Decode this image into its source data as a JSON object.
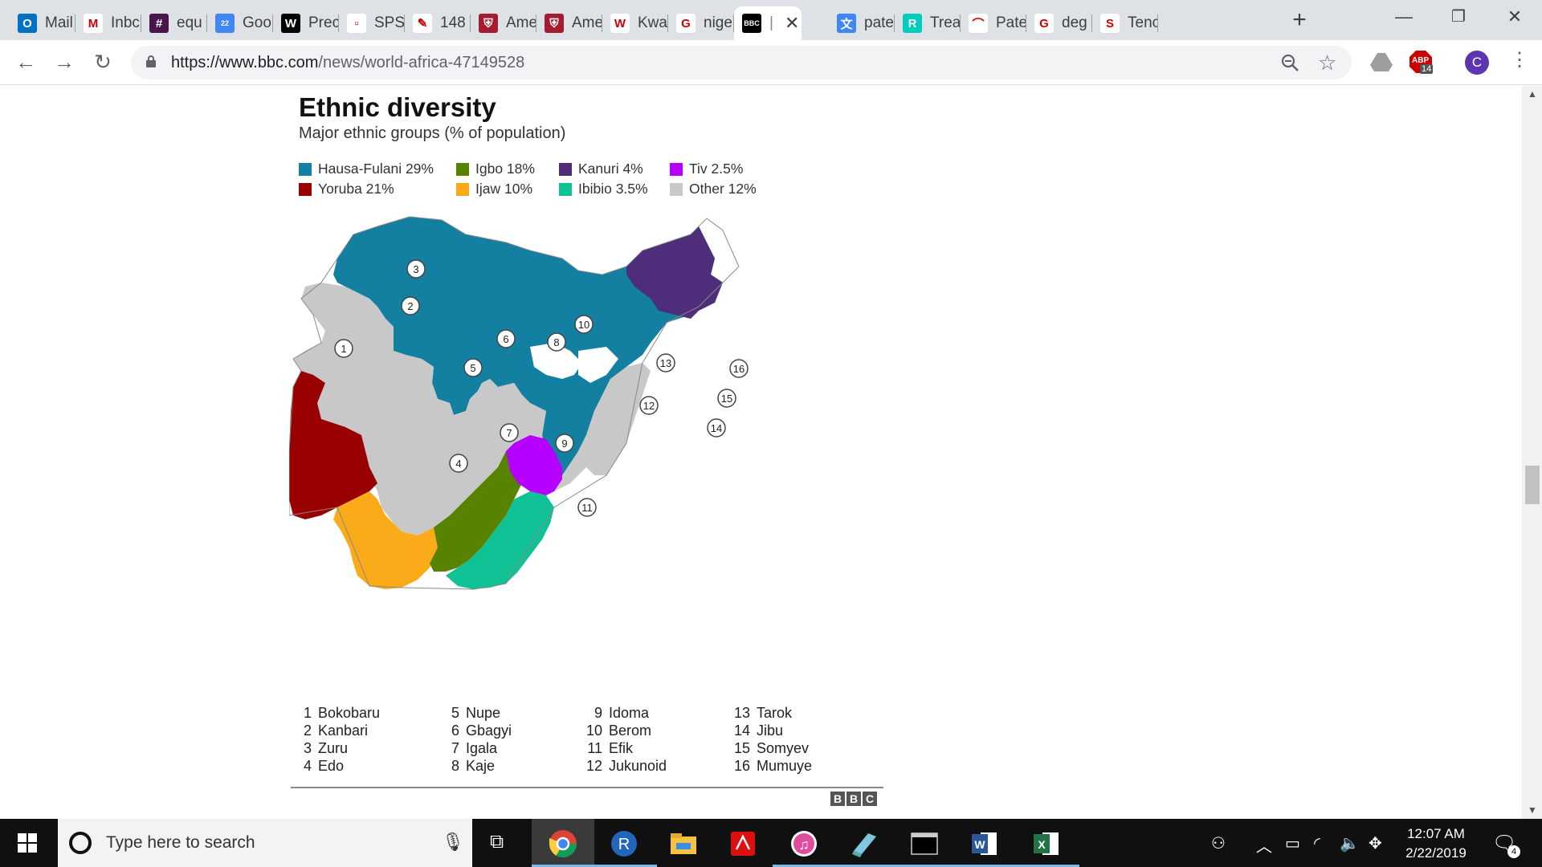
{
  "browser": {
    "tabs": [
      {
        "label": "Mail",
        "icon": "outlook-icon",
        "color": "#0072c6",
        "glyph": "O"
      },
      {
        "label": "Inbc",
        "icon": "gmail-icon",
        "color": "#ffffff",
        "glyph": "M"
      },
      {
        "label": "equ",
        "icon": "slack-icon",
        "color": "#4a154b",
        "glyph": "#"
      },
      {
        "label": "Goo",
        "icon": "google-calendar-icon",
        "color": "#4285f4",
        "glyph": "22"
      },
      {
        "label": "Prec",
        "icon": "wikipedia-w-icon",
        "color": "#000000",
        "glyph": "W"
      },
      {
        "label": "SPSS",
        "icon": "document-icon",
        "color": "#ffffff",
        "glyph": "▫"
      },
      {
        "label": "148",
        "icon": "quill-icon",
        "color": "#ffffff",
        "glyph": "✎"
      },
      {
        "label": "Ame",
        "icon": "harvard-shield-icon",
        "color": "#a51c30",
        "glyph": "⛨"
      },
      {
        "label": "Ame",
        "icon": "harvard-shield-icon",
        "color": "#a51c30",
        "glyph": "⛨"
      },
      {
        "label": "Kwa",
        "icon": "wikipedia-w-icon",
        "color": "#ffffff",
        "glyph": "W"
      },
      {
        "label": "nige",
        "icon": "google-g-icon",
        "color": "#ffffff",
        "glyph": "G"
      },
      {
        "label": "BBC",
        "icon": "bbc-icon",
        "color": "#000000",
        "glyph": "BBC",
        "active": true
      },
      {
        "label": "pate",
        "icon": "google-translate-icon",
        "color": "#4285f4",
        "glyph": "文"
      },
      {
        "label": "Trea",
        "icon": "researchgate-icon",
        "color": "#00ccbb",
        "glyph": "R"
      },
      {
        "label": "Pate",
        "icon": "patent-icon",
        "color": "#ffffff",
        "glyph": "⌒"
      },
      {
        "label": "deg",
        "icon": "google-g-icon",
        "color": "#ffffff",
        "glyph": "G"
      },
      {
        "label": "Tenc",
        "icon": "tencent-icon",
        "color": "#ffffff",
        "glyph": "S"
      }
    ],
    "url_host": "https://www.bbc.com",
    "url_path": "/news/world-africa-47149528",
    "extension_badge": "14",
    "profile_initial": "C",
    "adblock_label": "ABP"
  },
  "article": {
    "title": "Ethnic diversity",
    "subtitle": "Major ethnic groups (% of population)",
    "legend": [
      {
        "label": "Hausa-Fulani 29%",
        "color": "#1380a1"
      },
      {
        "label": "Igbo 18%",
        "color": "#588300"
      },
      {
        "label": "Kanuri 4%",
        "color": "#4e2d7a"
      },
      {
        "label": "Tiv 2.5%",
        "color": "#b600ff"
      },
      {
        "label": "Yoruba 21%",
        "color": "#990000"
      },
      {
        "label": "Ijaw 10%",
        "color": "#fbaa19"
      },
      {
        "label": "Ibibio 3.5%",
        "color": "#10c195"
      },
      {
        "label": "Other 12%",
        "color": "#c8c8c8"
      }
    ],
    "map_markers": [
      "1",
      "2",
      "3",
      "4",
      "5",
      "6",
      "7",
      "8",
      "9",
      "10",
      "11",
      "12",
      "13",
      "14",
      "15",
      "16"
    ],
    "key": [
      {
        "num": "1",
        "name": "Bokobaru"
      },
      {
        "num": "2",
        "name": "Kanbari"
      },
      {
        "num": "3",
        "name": "Zuru"
      },
      {
        "num": "4",
        "name": "Edo"
      },
      {
        "num": "5",
        "name": "Nupe"
      },
      {
        "num": "6",
        "name": "Gbagyi"
      },
      {
        "num": "7",
        "name": "Igala"
      },
      {
        "num": "8",
        "name": "Kaje"
      },
      {
        "num": "9",
        "name": "Idoma"
      },
      {
        "num": "10",
        "name": "Berom"
      },
      {
        "num": "11",
        "name": "Efik"
      },
      {
        "num": "12",
        "name": "Jukunoid"
      },
      {
        "num": "13",
        "name": "Tarok"
      },
      {
        "num": "14",
        "name": "Jibu"
      },
      {
        "num": "15",
        "name": "Somyev"
      },
      {
        "num": "16",
        "name": "Mumuye"
      }
    ],
    "source_logo": [
      "B",
      "B",
      "C"
    ]
  },
  "taskbar": {
    "search_placeholder": "Type here to search",
    "time": "12:07 AM",
    "date": "2/22/2019",
    "notification_count": "4"
  }
}
